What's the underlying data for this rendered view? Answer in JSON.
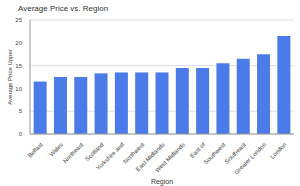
{
  "chart_data": {
    "type": "bar",
    "title": "Average Price vs. Region",
    "x_label": "Region",
    "y_label": "Average Price Upper",
    "categories": [
      "Belfast",
      "Wales",
      "Northeast",
      "Scotland",
      "Yorkshire and",
      "Northwest",
      "East Midlands",
      "West Midlands",
      "East of",
      "Southwest",
      "Southeast",
      "Greater London",
      "London"
    ],
    "values": [
      11.5,
      12.5,
      12.5,
      13.3,
      13.5,
      13.5,
      13.5,
      14.5,
      14.5,
      15.5,
      16.5,
      17.5,
      21.5
    ],
    "color": "#4a7be8",
    "ylim": [
      0,
      25
    ],
    "yticks": [
      0,
      5,
      10,
      15,
      20,
      25
    ],
    "grid": true
  }
}
